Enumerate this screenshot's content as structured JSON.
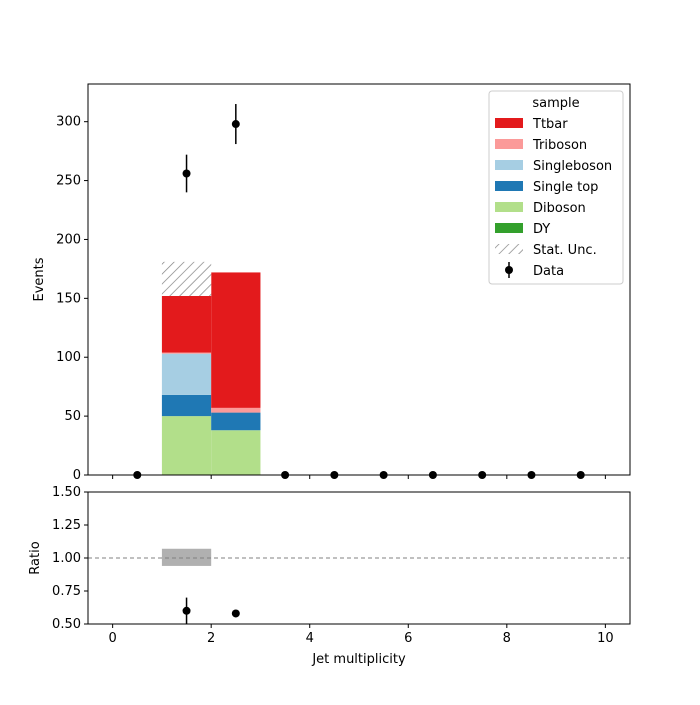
{
  "chart_data": {
    "type": "bar",
    "subtype": "stacked-histogram-with-ratio",
    "main": {
      "ylabel": "Events",
      "xlim": [
        -0.5,
        10.5
      ],
      "ylim": [
        0,
        332
      ],
      "yticks": [
        0,
        50,
        100,
        150,
        200,
        250,
        300
      ],
      "bin_edges": [
        1,
        2,
        3
      ],
      "stack_order": [
        "Diboson",
        "Single top",
        "Singleboson",
        "Triboson",
        "Ttbar"
      ],
      "series": [
        {
          "name": "Diboson",
          "color": "#b2df8a",
          "values": [
            50,
            38
          ]
        },
        {
          "name": "Single top",
          "color": "#1f78b4",
          "values": [
            18,
            15
          ]
        },
        {
          "name": "Singleboson",
          "color": "#a6cee3",
          "values": [
            35,
            0
          ]
        },
        {
          "name": "Triboson",
          "color": "#fb9a99",
          "values": [
            1,
            4
          ]
        },
        {
          "name": "Ttbar",
          "color": "#e31a1c",
          "values": [
            48,
            115
          ]
        }
      ],
      "stat_unc": {
        "bins": [
          [
            1,
            2
          ]
        ],
        "low": [
          152
        ],
        "high": [
          181
        ]
      },
      "data": {
        "name": "Data",
        "x": [
          0.5,
          1.5,
          2.5,
          3.5,
          4.5,
          5.5,
          6.5,
          7.5,
          8.5,
          9.5
        ],
        "y": [
          0,
          256,
          298,
          0,
          0,
          0,
          0,
          0,
          0,
          0
        ],
        "yerr": [
          0,
          16,
          17,
          0,
          0,
          0,
          0,
          0,
          0,
          0
        ]
      },
      "legend": {
        "title": "sample",
        "placement": "top-right",
        "entries": [
          {
            "label": "Ttbar",
            "kind": "patch",
            "color": "#e31a1c"
          },
          {
            "label": "Triboson",
            "kind": "patch",
            "color": "#fb9a99"
          },
          {
            "label": "Singleboson",
            "kind": "patch",
            "color": "#a6cee3"
          },
          {
            "label": "Single top",
            "kind": "patch",
            "color": "#1f78b4"
          },
          {
            "label": "Diboson",
            "kind": "patch",
            "color": "#b2df8a"
          },
          {
            "label": "DY",
            "kind": "patch",
            "color": "#33a02c"
          },
          {
            "label": "Stat. Unc.",
            "kind": "hatch",
            "color": "#808080"
          },
          {
            "label": "Data",
            "kind": "errorbar",
            "color": "#000000"
          }
        ]
      }
    },
    "ratio": {
      "ylabel": "Ratio",
      "xlabel": "Jet multiplicity",
      "xlim": [
        -0.5,
        10.5
      ],
      "ylim": [
        0.5,
        1.5
      ],
      "yticks": [
        "0.50",
        "0.75",
        "1.00",
        "1.25",
        "1.50"
      ],
      "xticks": [
        "0",
        "2",
        "4",
        "6",
        "8",
        "10"
      ],
      "reference_line": 1.0,
      "unc_band": {
        "bins": [
          [
            1,
            2
          ]
        ],
        "low": [
          0.94
        ],
        "high": [
          1.07
        ],
        "color": "#b0b0b0"
      },
      "points": {
        "x": [
          1.5,
          2.5
        ],
        "y": [
          0.6,
          0.58
        ],
        "yerr_low": [
          0.1,
          0.0
        ],
        "yerr_high": [
          0.1,
          0.0
        ]
      }
    }
  }
}
